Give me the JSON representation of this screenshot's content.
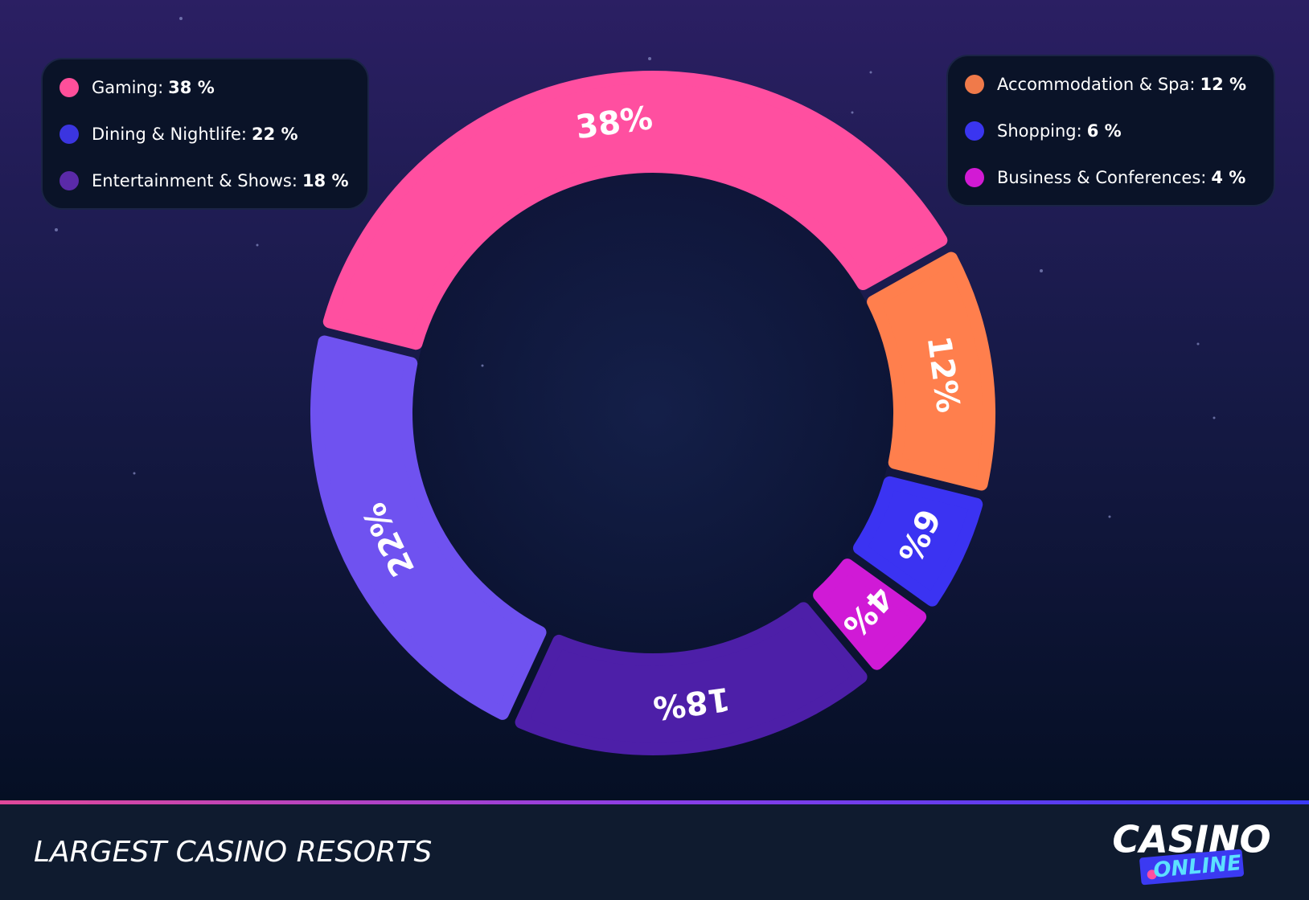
{
  "chart_data": {
    "type": "donut",
    "title": "LARGEST CASINO RESORTS",
    "labels": [
      "Gaming:",
      "Accommodation & Spa:",
      "Shopping:",
      "Business & Conferences:",
      "Entertainment & Shows:",
      "Dining & Nightlife:"
    ],
    "values": [
      38,
      12,
      6,
      4,
      18,
      22
    ],
    "value_labels": [
      "38%",
      "12%",
      "6%",
      "4%",
      "18%",
      "22%"
    ],
    "legend_value_labels": [
      "38 %",
      "12 %",
      "6 %",
      "4 %",
      "18 %",
      "22 %"
    ],
    "colors": [
      "#ff4fa0",
      "#ff7f4d",
      "#3b33f2",
      "#d01ad6",
      "#4d1fa8",
      "#6f52f0"
    ],
    "legend_colors": [
      "#ff4f9a",
      "#f07a4a",
      "#3a35f0",
      "#d21ad4",
      "#5a2aa8",
      "#3b35e0"
    ],
    "brand": {
      "top": "CASINO",
      "bottom": "ONLINE"
    }
  }
}
